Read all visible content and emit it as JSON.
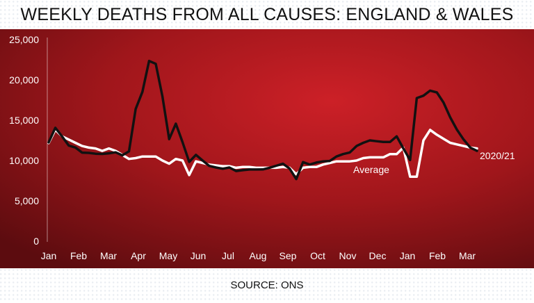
{
  "header": {
    "title": "WEEKLY DEATHS FROM ALL CAUSES: ENGLAND & WALES"
  },
  "footer": {
    "source": "SOURCE: ONS"
  },
  "colors": {
    "background_dark": "#5c0c0f",
    "background_bright": "#cc2027",
    "series_2020_21": "#111111",
    "series_average": "#ffffff"
  },
  "chart_data": {
    "type": "line",
    "title": "WEEKLY DEATHS FROM ALL CAUSES: ENGLAND & WALES",
    "xlabel": "",
    "ylabel": "",
    "ylim": [
      0,
      25000
    ],
    "y_ticks": [
      0,
      5000,
      10000,
      15000,
      20000,
      25000
    ],
    "y_tick_labels": [
      "0",
      "5,000",
      "10,000",
      "15,000",
      "20,000",
      "25,000"
    ],
    "x_tick_labels": [
      "Jan",
      "Feb",
      "Mar",
      "Apr",
      "May",
      "Jun",
      "Jul",
      "Aug",
      "Sep",
      "Oct",
      "Nov",
      "Dec",
      "Jan",
      "Feb",
      "Mar"
    ],
    "grid": false,
    "series": [
      {
        "name": "2020/21",
        "values": [
          12254,
          14058,
          12990,
          11856,
          11612,
          10986,
          10944,
          10841,
          10816,
          10895,
          11019,
          10645,
          11141,
          16387,
          18516,
          22351,
          21997,
          17953,
          12657,
          14573,
          12288,
          9824,
          10709,
          10000,
          9339,
          9140,
          8979,
          9140,
          8700,
          8800,
          8891,
          8891,
          8900,
          9100,
          9350,
          9600,
          9000,
          7700,
          9800,
          9500,
          9750,
          9900,
          9950,
          10500,
          10800,
          11000,
          11800,
          12200,
          12500,
          12400,
          12300,
          12300,
          13000,
          11500,
          10069,
          17751,
          18042,
          18676,
          18448,
          17192,
          15354,
          13837,
          12601,
          11600,
          11200
        ]
      },
      {
        "name": "Average",
        "values": [
          12175,
          13822,
          13000,
          12600,
          12200,
          11800,
          11600,
          11500,
          11200,
          11500,
          11200,
          10700,
          10200,
          10300,
          10500,
          10500,
          10500,
          10000,
          9600,
          10200,
          10000,
          8200,
          9900,
          9700,
          9500,
          9400,
          9300,
          9300,
          9100,
          9200,
          9200,
          9100,
          9100,
          9100,
          9100,
          9200,
          9100,
          8300,
          9100,
          9200,
          9200,
          9500,
          9700,
          9900,
          9900,
          9900,
          10000,
          10300,
          10400,
          10400,
          10400,
          10800,
          10800,
          11600,
          8000,
          8000,
          12500,
          13800,
          13200,
          12700,
          12200,
          12000,
          11800,
          11600,
          11500
        ]
      }
    ]
  }
}
